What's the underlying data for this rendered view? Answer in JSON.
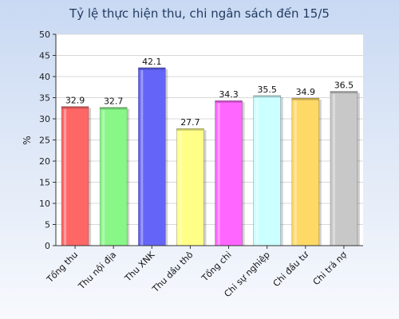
{
  "chart_data": {
    "type": "bar",
    "title": "Tỷ lệ thực hiện thu, chi ngân sách đến 15/5",
    "ylabel": "%",
    "xlabel": "",
    "ylim": [
      0,
      50
    ],
    "yticks": [
      0,
      5,
      10,
      15,
      20,
      25,
      30,
      35,
      40,
      45,
      50
    ],
    "categories": [
      "Tổng thu",
      "Thu nội địa",
      "Thu XNK",
      "Thu dầu thô",
      "Tổng chi",
      "Chi sự nghiệp",
      "Chi đầu tư",
      "Chi trả nợ"
    ],
    "values": [
      32.9,
      32.7,
      42.1,
      27.7,
      34.3,
      35.5,
      34.9,
      36.5
    ],
    "colors": [
      "#ff6666",
      "#88f788",
      "#6464f7",
      "#ffff88",
      "#ff66ff",
      "#ccffff",
      "#ffd966",
      "#c8c8c8"
    ],
    "grid": true,
    "legend": "none"
  }
}
